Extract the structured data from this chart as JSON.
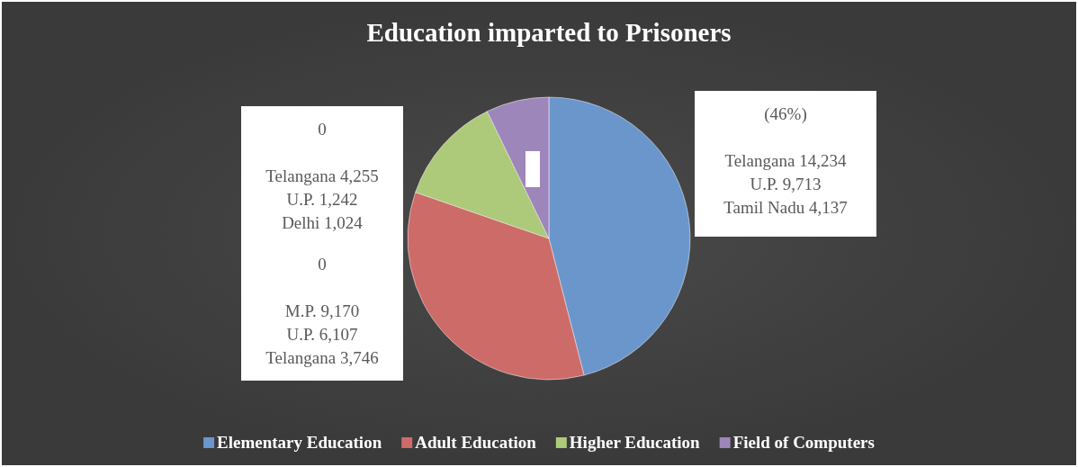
{
  "chart_data": {
    "type": "pie",
    "title": "Education imparted to Prisoners",
    "categories": [
      "Elementary Education",
      "Adult Education",
      "Higher Education",
      "Field of Computers"
    ],
    "values": [
      46,
      34.3,
      12.5,
      7.2
    ],
    "colors": [
      "#6a96cc",
      "#cd6b68",
      "#adc97a",
      "#9d86ba"
    ],
    "legend": "bottom",
    "annotations": [
      "(46%)\n\nTelangana 14,234\nU.P. 9,713\nTamil Nadu 4,137",
      "0\n\nTelangana 4,255\nU.P. 1,242\nDelhi 1,024",
      "0\n\nM.P. 9,170\nU.P. 6,107\nTelangana 3,746"
    ]
  }
}
